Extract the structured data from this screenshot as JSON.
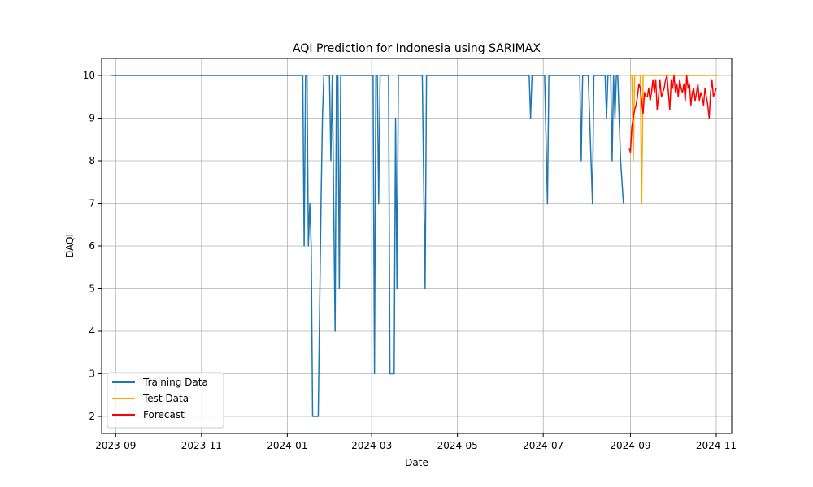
{
  "chart_data": {
    "type": "line",
    "title": "AQI Prediction for Indonesia using SARIMAX",
    "xlabel": "Date",
    "ylabel": "DAQI",
    "x_type": "date",
    "xlim": [
      "2023-08-22",
      "2024-11-12"
    ],
    "ylim": [
      1.6,
      10.4
    ],
    "xticks": [
      "2023-09-01",
      "2023-11-01",
      "2024-01-01",
      "2024-03-01",
      "2024-05-01",
      "2024-07-01",
      "2024-09-01",
      "2024-11-01"
    ],
    "xtick_labels": [
      "2023-09",
      "2023-11",
      "2024-01",
      "2024-03",
      "2024-05",
      "2024-07",
      "2024-09",
      "2024-11"
    ],
    "yticks": [
      2,
      3,
      4,
      5,
      6,
      7,
      8,
      9,
      10
    ],
    "grid": true,
    "legend_position": "lower left",
    "series": [
      {
        "name": "Training Data",
        "color": "#1f77b4",
        "points": [
          [
            "2023-08-29",
            10
          ],
          [
            "2024-01-12",
            10
          ],
          [
            "2024-01-13",
            6
          ],
          [
            "2024-01-14",
            10
          ],
          [
            "2024-01-15",
            10
          ],
          [
            "2024-01-16",
            6
          ],
          [
            "2024-01-17",
            7
          ],
          [
            "2024-01-18",
            6
          ],
          [
            "2024-01-19",
            2
          ],
          [
            "2024-01-23",
            2
          ],
          [
            "2024-01-25",
            7
          ],
          [
            "2024-01-26",
            9
          ],
          [
            "2024-01-27",
            10
          ],
          [
            "2024-01-31",
            10
          ],
          [
            "2024-02-01",
            8
          ],
          [
            "2024-02-02",
            10
          ],
          [
            "2024-02-04",
            4
          ],
          [
            "2024-02-05",
            10
          ],
          [
            "2024-02-06",
            10
          ],
          [
            "2024-02-07",
            5
          ],
          [
            "2024-02-08",
            10
          ],
          [
            "2024-03-02",
            10
          ],
          [
            "2024-03-03",
            3
          ],
          [
            "2024-03-04",
            10
          ],
          [
            "2024-03-05",
            10
          ],
          [
            "2024-03-06",
            7
          ],
          [
            "2024-03-07",
            10
          ],
          [
            "2024-03-13",
            10
          ],
          [
            "2024-03-14",
            3
          ],
          [
            "2024-03-17",
            3
          ],
          [
            "2024-03-18",
            9
          ],
          [
            "2024-03-19",
            5
          ],
          [
            "2024-03-20",
            10
          ],
          [
            "2024-04-06",
            10
          ],
          [
            "2024-04-08",
            5
          ],
          [
            "2024-04-09",
            10
          ],
          [
            "2024-06-21",
            10
          ],
          [
            "2024-06-22",
            9
          ],
          [
            "2024-06-23",
            10
          ],
          [
            "2024-07-02",
            10
          ],
          [
            "2024-07-04",
            7
          ],
          [
            "2024-07-05",
            10
          ],
          [
            "2024-07-27",
            10
          ],
          [
            "2024-07-28",
            8
          ],
          [
            "2024-07-29",
            10
          ],
          [
            "2024-08-02",
            10
          ],
          [
            "2024-08-05",
            7
          ],
          [
            "2024-08-06",
            10
          ],
          [
            "2024-08-14",
            10
          ],
          [
            "2024-08-15",
            9
          ],
          [
            "2024-08-16",
            10
          ],
          [
            "2024-08-18",
            10
          ],
          [
            "2024-08-19",
            8
          ],
          [
            "2024-08-20",
            10
          ],
          [
            "2024-08-21",
            9
          ],
          [
            "2024-08-22",
            10
          ],
          [
            "2024-08-23",
            10
          ],
          [
            "2024-08-25",
            8
          ],
          [
            "2024-08-27",
            7
          ]
        ]
      },
      {
        "name": "Test Data",
        "color": "#ffa500",
        "points": [
          [
            "2024-09-01",
            10
          ],
          [
            "2024-09-02",
            10
          ],
          [
            "2024-09-03",
            8
          ],
          [
            "2024-09-04",
            10
          ],
          [
            "2024-09-08",
            10
          ],
          [
            "2024-09-09",
            7
          ],
          [
            "2024-09-10",
            10
          ],
          [
            "2024-11-02",
            10
          ]
        ]
      },
      {
        "name": "Forecast",
        "color": "#ff0000",
        "points": [
          [
            "2024-08-31",
            8.3
          ],
          [
            "2024-09-01",
            8.2
          ],
          [
            "2024-09-02",
            8.8
          ],
          [
            "2024-09-03",
            9.0
          ],
          [
            "2024-09-04",
            9.2
          ],
          [
            "2024-09-05",
            9.3
          ],
          [
            "2024-09-06",
            9.5
          ],
          [
            "2024-09-07",
            9.8
          ],
          [
            "2024-09-08",
            9.7
          ],
          [
            "2024-09-09",
            9.4
          ],
          [
            "2024-09-10",
            9.1
          ],
          [
            "2024-09-11",
            9.6
          ],
          [
            "2024-09-12",
            9.5
          ],
          [
            "2024-09-13",
            9.5
          ],
          [
            "2024-09-14",
            9.7
          ],
          [
            "2024-09-15",
            9.4
          ],
          [
            "2024-09-16",
            9.6
          ],
          [
            "2024-09-17",
            9.9
          ],
          [
            "2024-09-18",
            9.6
          ],
          [
            "2024-09-19",
            9.9
          ],
          [
            "2024-09-20",
            9.2
          ],
          [
            "2024-09-21",
            9.5
          ],
          [
            "2024-09-22",
            9.9
          ],
          [
            "2024-09-23",
            9.5
          ],
          [
            "2024-09-24",
            9.6
          ],
          [
            "2024-09-25",
            9.7
          ],
          [
            "2024-09-26",
            9.9
          ],
          [
            "2024-09-27",
            10.0
          ],
          [
            "2024-09-28",
            9.6
          ],
          [
            "2024-09-29",
            9.2
          ],
          [
            "2024-09-30",
            9.9
          ],
          [
            "2024-10-01",
            9.7
          ],
          [
            "2024-10-02",
            10.0
          ],
          [
            "2024-10-03",
            9.6
          ],
          [
            "2024-10-04",
            9.8
          ],
          [
            "2024-10-05",
            9.5
          ],
          [
            "2024-10-06",
            9.9
          ],
          [
            "2024-10-07",
            9.7
          ],
          [
            "2024-10-08",
            9.6
          ],
          [
            "2024-10-09",
            9.8
          ],
          [
            "2024-10-10",
            9.4
          ],
          [
            "2024-10-11",
            10.0
          ],
          [
            "2024-10-12",
            9.7
          ],
          [
            "2024-10-13",
            9.8
          ],
          [
            "2024-10-14",
            9.3
          ],
          [
            "2024-10-15",
            9.6
          ],
          [
            "2024-10-16",
            9.7
          ],
          [
            "2024-10-17",
            9.4
          ],
          [
            "2024-10-18",
            9.6
          ],
          [
            "2024-10-19",
            9.8
          ],
          [
            "2024-10-20",
            9.4
          ],
          [
            "2024-10-21",
            9.6
          ],
          [
            "2024-10-22",
            9.5
          ],
          [
            "2024-10-23",
            9.3
          ],
          [
            "2024-10-24",
            9.7
          ],
          [
            "2024-10-25",
            9.5
          ],
          [
            "2024-10-26",
            9.3
          ],
          [
            "2024-10-27",
            9.0
          ],
          [
            "2024-10-28",
            9.6
          ],
          [
            "2024-10-29",
            9.9
          ],
          [
            "2024-10-30",
            9.5
          ],
          [
            "2024-10-31",
            9.6
          ],
          [
            "2024-11-01",
            9.7
          ]
        ]
      }
    ]
  }
}
